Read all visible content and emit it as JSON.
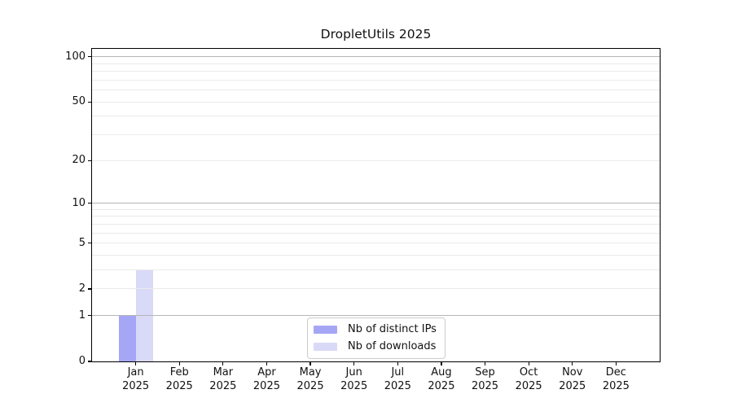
{
  "chart_data": {
    "type": "bar",
    "title": "DropletUtils 2025",
    "x_categories": [
      {
        "month": "Jan",
        "year": "2025"
      },
      {
        "month": "Feb",
        "year": "2025"
      },
      {
        "month": "Mar",
        "year": "2025"
      },
      {
        "month": "Apr",
        "year": "2025"
      },
      {
        "month": "May",
        "year": "2025"
      },
      {
        "month": "Jun",
        "year": "2025"
      },
      {
        "month": "Jul",
        "year": "2025"
      },
      {
        "month": "Aug",
        "year": "2025"
      },
      {
        "month": "Sep",
        "year": "2025"
      },
      {
        "month": "Oct",
        "year": "2025"
      },
      {
        "month": "Nov",
        "year": "2025"
      },
      {
        "month": "Dec",
        "year": "2025"
      }
    ],
    "series": [
      {
        "name": "Nb of distinct IPs",
        "color": "#a6a6f6",
        "values": [
          1,
          0,
          0,
          0,
          0,
          0,
          0,
          0,
          0,
          0,
          0,
          0
        ]
      },
      {
        "name": "Nb of downloads",
        "color": "#d9d9f8",
        "values": [
          3,
          0,
          0,
          0,
          0,
          0,
          0,
          0,
          0,
          0,
          0,
          0
        ]
      }
    ],
    "yscale": "log10(1+v)",
    "ylim": [
      0,
      113
    ],
    "y_ticks": [
      0,
      1,
      2,
      5,
      10,
      20,
      50,
      100
    ],
    "grid": {
      "major_lines": [
        1,
        10,
        100
      ],
      "minor_lines": [
        2,
        3,
        4,
        5,
        6,
        7,
        8,
        9,
        20,
        30,
        40,
        50,
        60,
        70,
        80,
        90
      ],
      "major_color": "#b6b6b6",
      "minor_color": "#eaeaea"
    },
    "legend": {
      "position": "lower center"
    },
    "colors": {
      "background": "#ffffff",
      "axis": "#000000",
      "text": "#111111"
    }
  }
}
